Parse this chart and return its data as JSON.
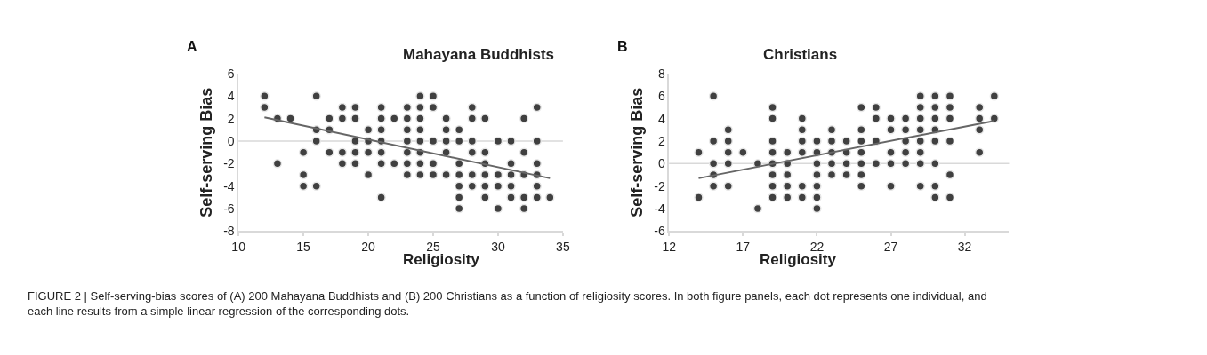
{
  "chart_data": [
    {
      "type": "scatter",
      "title": "Mahayana Buddhists",
      "xlabel": "Religiosity",
      "ylabel": "Self-serving Bias",
      "annotations": [
        "A",
        "FIGURE 2 | Self-serving-bias scores of (A) 200 Mahayana Buddhists and (B) 200 Christians as a function of religiosity scores. In both figure panels, each dot represents one individual, and each line results from a simple linear regression of the corresponding dots."
      ],
      "xlim": [
        10,
        35
      ],
      "xticks": [
        10,
        15,
        20,
        25,
        30,
        35
      ],
      "ylim": [
        -8,
        6
      ],
      "yticks": [
        -8,
        -6,
        -4,
        -2,
        0,
        2,
        4,
        6
      ],
      "grid": false,
      "marker": "circle",
      "ref_lines": [
        {
          "axis": "y",
          "value": 0,
          "color": "#d9d9d9"
        }
      ],
      "series": [
        {
          "type": "scatter",
          "color": "#404040",
          "x": [
            12,
            12,
            13,
            13,
            14,
            15,
            15,
            15,
            16,
            16,
            16,
            16,
            17,
            17,
            17,
            18,
            18,
            18,
            18,
            19,
            19,
            19,
            19,
            19,
            20,
            20,
            20,
            20,
            21,
            21,
            21,
            21,
            21,
            21,
            21,
            22,
            22,
            23,
            23,
            23,
            23,
            23,
            23,
            23,
            24,
            24,
            24,
            24,
            24,
            24,
            24,
            24,
            25,
            25,
            25,
            25,
            25,
            26,
            26,
            26,
            26,
            26,
            27,
            27,
            27,
            27,
            27,
            27,
            27,
            28,
            28,
            28,
            28,
            28,
            28,
            29,
            29,
            29,
            29,
            29,
            29,
            30,
            30,
            30,
            30,
            31,
            31,
            31,
            31,
            31,
            32,
            32,
            32,
            32,
            32,
            33,
            33,
            33,
            33,
            33,
            33,
            34
          ],
          "values": [
            4,
            3,
            2,
            -2,
            2,
            -1,
            -3,
            -4,
            4,
            1,
            0,
            -4,
            2,
            1,
            -1,
            3,
            2,
            -1,
            -2,
            3,
            2,
            0,
            -1,
            -2,
            1,
            0,
            -1,
            -3,
            3,
            2,
            1,
            0,
            -1,
            -2,
            -5,
            2,
            -2,
            3,
            2,
            1,
            0,
            -1,
            -2,
            -3,
            4,
            3,
            2,
            1,
            0,
            -1,
            -2,
            -3,
            4,
            3,
            0,
            -2,
            -3,
            2,
            1,
            0,
            -1,
            -3,
            1,
            0,
            -2,
            -3,
            -4,
            -5,
            -6,
            3,
            2,
            0,
            -1,
            -3,
            -4,
            2,
            -1,
            -2,
            -3,
            -4,
            -5,
            0,
            -3,
            -4,
            -6,
            0,
            -2,
            -3,
            -4,
            -5,
            2,
            -1,
            -3,
            -5,
            -6,
            3,
            0,
            -2,
            -3,
            -4,
            -5,
            -5
          ]
        },
        {
          "type": "line",
          "color": "#666666",
          "x": [
            12,
            34
          ],
          "values": [
            2.1,
            -3.3
          ],
          "marker": "none",
          "line_style": "solid"
        }
      ]
    },
    {
      "type": "scatter",
      "title": "Christians",
      "xlabel": "Religiosity",
      "ylabel": "Self-serving Bias",
      "annotations": [
        "B"
      ],
      "xlim": [
        12,
        35
      ],
      "xticks": [
        12,
        17,
        22,
        27,
        32
      ],
      "ylim": [
        -6,
        8
      ],
      "yticks": [
        -6,
        -4,
        -2,
        0,
        2,
        4,
        6,
        8
      ],
      "grid": false,
      "marker": "circle",
      "ref_lines": [
        {
          "axis": "y",
          "value": 0,
          "color": "#d9d9d9"
        }
      ],
      "series": [
        {
          "type": "scatter",
          "color": "#404040",
          "x": [
            14,
            14,
            15,
            15,
            15,
            15,
            15,
            16,
            16,
            16,
            16,
            16,
            17,
            18,
            18,
            19,
            19,
            19,
            19,
            19,
            19,
            19,
            19,
            20,
            20,
            20,
            20,
            20,
            21,
            21,
            21,
            21,
            21,
            21,
            22,
            22,
            22,
            22,
            22,
            22,
            22,
            23,
            23,
            23,
            23,
            23,
            24,
            24,
            24,
            24,
            25,
            25,
            25,
            25,
            25,
            25,
            25,
            26,
            26,
            26,
            26,
            27,
            27,
            27,
            27,
            27,
            28,
            28,
            28,
            28,
            28,
            29,
            29,
            29,
            29,
            29,
            29,
            29,
            29,
            30,
            30,
            30,
            30,
            30,
            30,
            30,
            30,
            31,
            31,
            31,
            31,
            31,
            31,
            33,
            33,
            33,
            33,
            34,
            34
          ],
          "values": [
            1,
            -3,
            6,
            2,
            0,
            -1,
            -2,
            3,
            2,
            1,
            0,
            -2,
            1,
            0,
            -4,
            5,
            4,
            2,
            1,
            0,
            -1,
            -2,
            -3,
            1,
            0,
            -1,
            -2,
            -3,
            4,
            3,
            2,
            1,
            -2,
            -3,
            2,
            1,
            0,
            -1,
            -2,
            -3,
            -4,
            3,
            2,
            1,
            0,
            -1,
            2,
            1,
            0,
            -1,
            5,
            3,
            2,
            1,
            0,
            -1,
            -2,
            5,
            4,
            2,
            0,
            4,
            3,
            1,
            0,
            -2,
            4,
            3,
            2,
            1,
            0,
            6,
            5,
            4,
            3,
            2,
            1,
            0,
            -2,
            6,
            5,
            4,
            3,
            2,
            0,
            -2,
            -3,
            6,
            5,
            4,
            2,
            -1,
            -3,
            5,
            4,
            3,
            1,
            6,
            4
          ]
        },
        {
          "type": "line",
          "color": "#666666",
          "x": [
            14,
            34
          ],
          "values": [
            -1.3,
            3.8
          ],
          "marker": "none",
          "line_style": "solid"
        }
      ]
    }
  ]
}
